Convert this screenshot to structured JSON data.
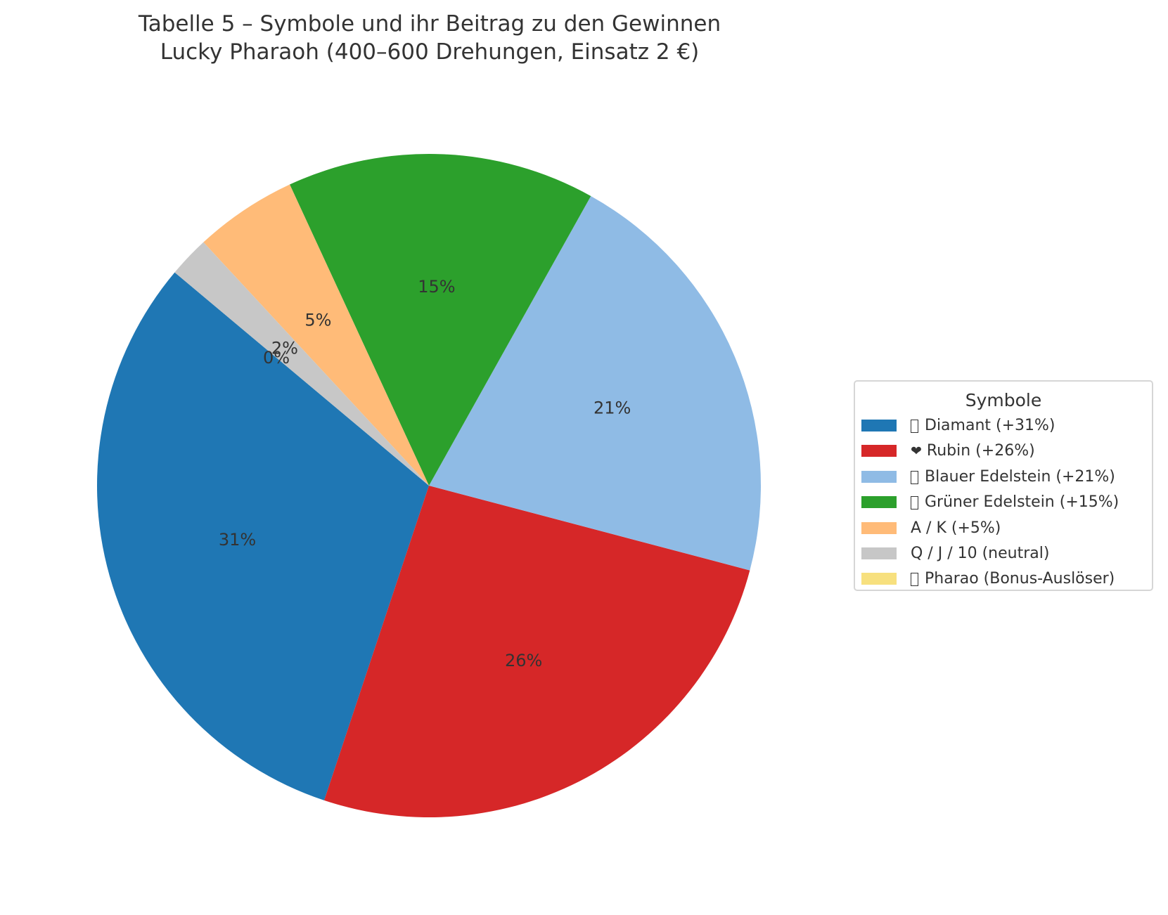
{
  "title": {
    "line1": "Tabelle 5 – Symbole und ihr Beitrag zu den Gewinnen",
    "line2": "Lucky Pharaoh (400–600 Drehungen, Einsatz 2 €)"
  },
  "legend": {
    "title": "Symbole",
    "items": [
      {
        "glyph": "missing-glyph-box",
        "label": "Diamant (+31%)",
        "color": "#1f77b4"
      },
      {
        "glyph": "❤",
        "label": "Rubin (+26%)",
        "color": "#d62728"
      },
      {
        "glyph": "missing-glyph-box",
        "label": "Blauer Edelstein (+21%)",
        "color": "#8fbbe5"
      },
      {
        "glyph": "missing-glyph-box",
        "label": "Grüner Edelstein (+15%)",
        "color": "#2ca02c"
      },
      {
        "glyph": "",
        "label": "A / K (+5%)",
        "color": "#ffbb78"
      },
      {
        "glyph": "",
        "label": "Q / J / 10 (neutral)",
        "color": "#c7c7c7"
      },
      {
        "glyph": "missing-glyph-box",
        "label": "Pharao (Bonus-Auslöser)",
        "color": "#f7e07e"
      }
    ]
  },
  "chart_data": {
    "type": "pie",
    "title": "Tabelle 5 – Symbole und ihr Beitrag zu den Gewinnen\nLucky Pharaoh (400–600 Drehungen, Einsatz 2 €)",
    "categories": [
      "Diamant",
      "Rubin",
      "Blauer Edelstein",
      "Grüner Edelstein",
      "A / K",
      "Q / J / 10",
      "Pharao"
    ],
    "values": [
      31,
      26,
      21,
      15,
      5,
      2,
      0
    ],
    "labels": [
      "31%",
      "26%",
      "21%",
      "15%",
      "5%",
      "2%",
      "0%"
    ],
    "colors": [
      "#1f77b4",
      "#d62728",
      "#8fbbe5",
      "#2ca02c",
      "#ffbb78",
      "#c7c7c7",
      "#f7e07e"
    ],
    "startangle": 140,
    "direction": "counterclockwise",
    "legend_title": "Symbole",
    "legend_position": "right center"
  }
}
